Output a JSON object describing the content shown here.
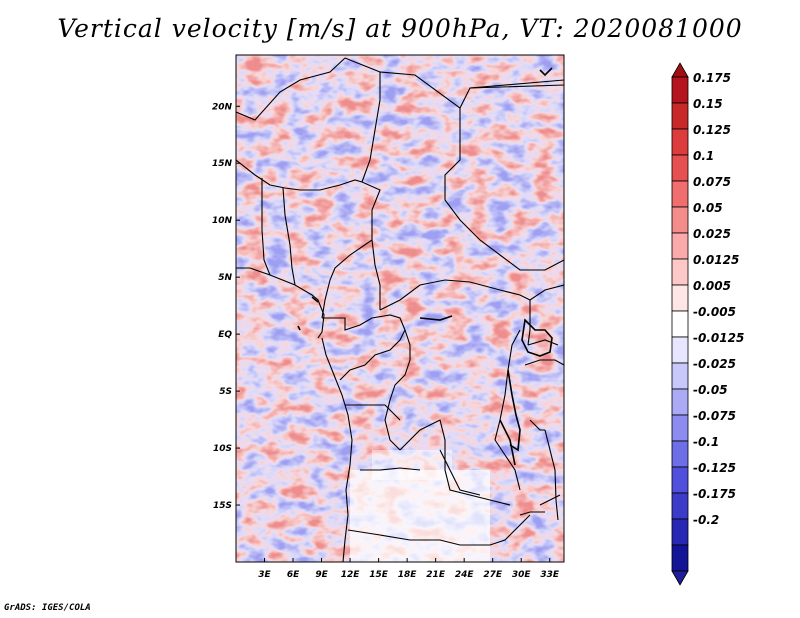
{
  "title": "Vertical velocity [m/s] at 900hPa, VT: 2020081000",
  "credit": "GrADS: IGES/COLA",
  "map": {
    "lon_range": [
      0,
      34.5
    ],
    "lat_range": [
      -20,
      24.5
    ],
    "lon_ticks": [
      {
        "lon": 3,
        "label": "3E"
      },
      {
        "lon": 6,
        "label": "6E"
      },
      {
        "lon": 9,
        "label": "9E"
      },
      {
        "lon": 12,
        "label": "12E"
      },
      {
        "lon": 15,
        "label": "15E"
      },
      {
        "lon": 18,
        "label": "18E"
      },
      {
        "lon": 21,
        "label": "21E"
      },
      {
        "lon": 24,
        "label": "24E"
      },
      {
        "lon": 27,
        "label": "27E"
      },
      {
        "lon": 30,
        "label": "30E"
      },
      {
        "lon": 33,
        "label": "33E"
      }
    ],
    "lat_ticks": [
      {
        "lat": 20,
        "label": "20N"
      },
      {
        "lat": 15,
        "label": "15N"
      },
      {
        "lat": 10,
        "label": "10N"
      },
      {
        "lat": 5,
        "label": "5N"
      },
      {
        "lat": 0,
        "label": "EQ"
      },
      {
        "lat": -5,
        "label": "5S"
      },
      {
        "lat": -10,
        "label": "10S"
      },
      {
        "lat": -15,
        "label": "15S"
      }
    ]
  },
  "colorbar": {
    "labels": [
      "0.175",
      "0.15",
      "0.125",
      "0.1",
      "0.075",
      "0.05",
      "0.025",
      "0.0125",
      "0.005",
      "-0.005",
      "-0.0125",
      "-0.025",
      "-0.05",
      "-0.075",
      "-0.1",
      "-0.125",
      "-0.175",
      "-0.2"
    ],
    "colors": [
      "#b4141e",
      "#c82828",
      "#dc3c3c",
      "#e65050",
      "#f06e6e",
      "#f58c8c",
      "#faaaaa",
      "#fcc8c8",
      "#fee6e6",
      "#ffffff",
      "#e6e6fe",
      "#c8c8fa",
      "#aaaaf5",
      "#8c8cf0",
      "#6e6ee6",
      "#5050dc",
      "#3c3cc8",
      "#2828b4",
      "#141496"
    ],
    "top_color": "#a01010",
    "bottom_color": "#1e1e9b"
  }
}
